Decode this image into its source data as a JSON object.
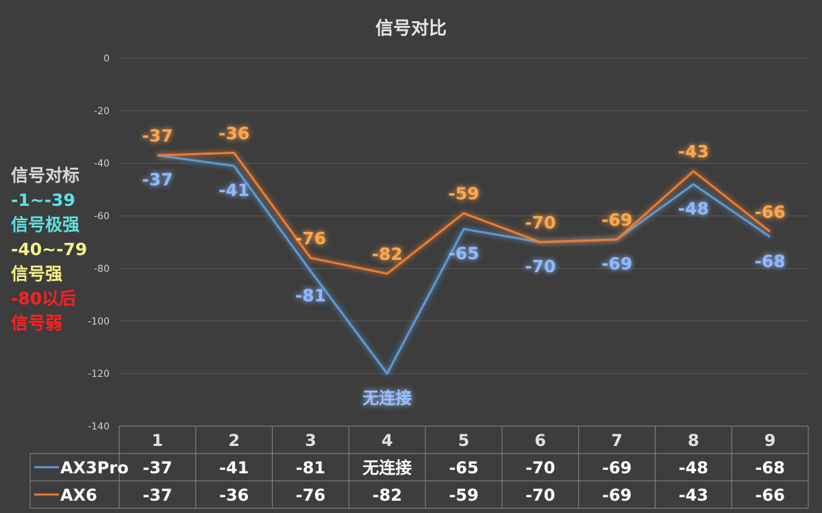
{
  "chart_data": {
    "type": "line",
    "title": "信号对比",
    "categories": [
      "1",
      "2",
      "3",
      "4",
      "5",
      "6",
      "7",
      "8",
      "9"
    ],
    "ylim": [
      -140,
      0
    ],
    "yticks": [
      0,
      -20,
      -40,
      -60,
      -80,
      -100,
      -120,
      -140
    ],
    "grid": true,
    "legend": "bottom-left data table",
    "series": [
      {
        "name": "AX3Pro",
        "color": "#5b9bd5",
        "values": [
          -37,
          -41,
          -81,
          -120,
          -65,
          -70,
          -69,
          -48,
          -68
        ],
        "labels": [
          "-37",
          "-41",
          "-81",
          "无连接",
          "-65",
          "-70",
          "-69",
          "-48",
          "-68"
        ]
      },
      {
        "name": "AX6",
        "color": "#ed7d31",
        "values": [
          -37,
          -36,
          -76,
          -82,
          -59,
          -70,
          -69,
          -43,
          -66
        ],
        "labels": [
          "-37",
          "-36",
          "-76",
          "-82",
          "-59",
          "-70",
          "-69",
          "-43",
          "-66"
        ]
      }
    ]
  },
  "annotation": {
    "lines": [
      {
        "text": "信号对标",
        "color": "#d9d9d9"
      },
      {
        "text": "-1~-39",
        "color": "#5ee0e0"
      },
      {
        "text": "信号极强",
        "color": "#5ee0e0"
      },
      {
        "text": "-40~-79",
        "color": "#f5f08a"
      },
      {
        "text": "信号强",
        "color": "#f5f08a"
      },
      {
        "text": "-80以后",
        "color": "#ff2020"
      },
      {
        "text": "信号弱",
        "color": "#ff2020"
      }
    ]
  }
}
